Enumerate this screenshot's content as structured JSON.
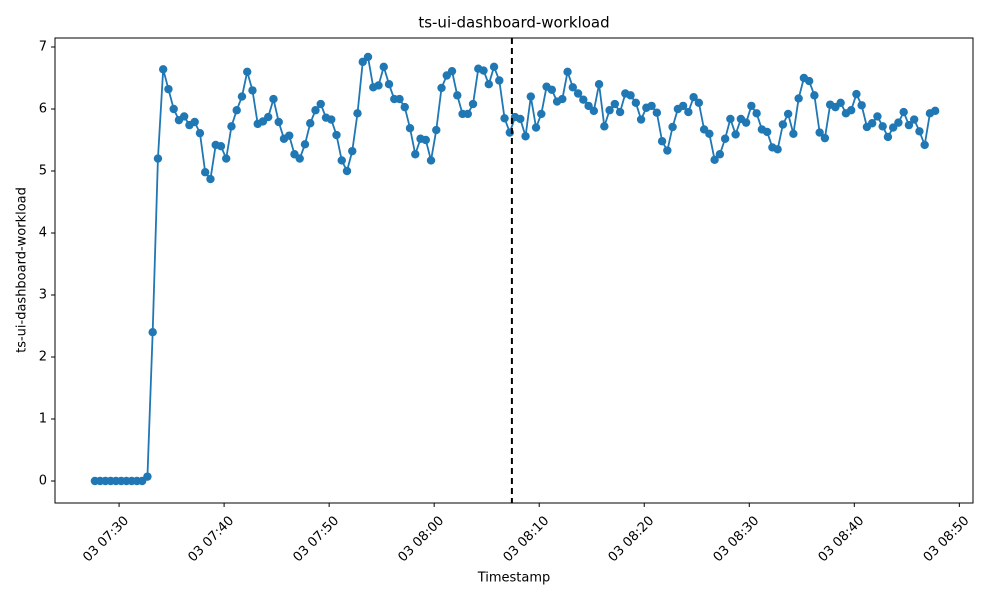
{
  "chart_data": {
    "type": "line",
    "title": "ts-ui-dashboard-workload",
    "xlabel": "Timestamp",
    "ylabel": "ts-ui-dashboard-workload",
    "x": [
      447.7,
      448.2,
      448.7,
      449.2,
      449.7,
      450.2,
      450.7,
      451.2,
      451.7,
      452.2,
      452.7,
      453.2,
      453.7,
      454.2,
      454.7,
      455.2,
      455.7,
      456.2,
      456.7,
      457.2,
      457.7,
      458.2,
      458.7,
      459.2,
      459.7,
      460.2,
      460.7,
      461.2,
      461.7,
      462.2,
      462.7,
      463.2,
      463.7,
      464.2,
      464.7,
      465.2,
      465.7,
      466.2,
      466.7,
      467.2,
      467.7,
      468.2,
      468.7,
      469.2,
      469.7,
      470.2,
      470.7,
      471.2,
      471.7,
      472.2,
      472.7,
      473.2,
      473.7,
      474.2,
      474.7,
      475.2,
      475.7,
      476.2,
      476.7,
      477.2,
      477.7,
      478.2,
      478.7,
      479.2,
      479.7,
      480.2,
      480.7,
      481.2,
      481.7,
      482.2,
      482.7,
      483.2,
      483.7,
      484.2,
      484.7,
      485.2,
      485.7,
      486.2,
      486.7,
      487.2,
      487.7,
      488.2,
      488.7,
      489.2,
      489.7,
      490.2,
      490.7,
      491.2,
      491.7,
      492.2,
      492.7,
      493.2,
      493.7,
      494.2,
      494.7,
      495.2,
      495.7,
      496.2,
      496.7,
      497.2,
      497.7,
      498.2,
      498.7,
      499.2,
      499.7,
      500.2,
      500.7,
      501.2,
      501.7,
      502.2,
      502.7,
      503.2,
      503.7,
      504.2,
      504.7,
      505.2,
      505.7,
      506.2,
      506.7,
      507.2,
      507.7,
      508.2,
      508.7,
      509.2,
      509.7,
      510.2,
      510.7,
      511.2,
      511.7,
      512.2,
      512.7,
      513.2,
      513.7,
      514.2,
      514.7,
      515.2,
      515.7,
      516.2,
      516.7,
      517.2,
      517.7,
      518.2,
      518.7,
      519.2,
      519.7,
      520.2,
      520.7,
      521.2,
      521.7,
      522.2,
      522.7,
      523.2,
      523.7,
      524.2,
      524.7,
      525.2,
      525.7,
      526.2,
      526.7,
      527.2,
      527.7
    ],
    "series": [
      {
        "name": "ts-ui-dashboard-workload",
        "color": "#1f77b4",
        "values": [
          0,
          0,
          0,
          0,
          0,
          0,
          0,
          0,
          0,
          0,
          0.07,
          2.4,
          5.2,
          6.64,
          6.32,
          6.0,
          5.82,
          5.88,
          5.74,
          5.79,
          5.61,
          4.98,
          4.87,
          5.42,
          5.4,
          5.2,
          5.72,
          5.98,
          6.2,
          6.6,
          6.3,
          5.76,
          5.8,
          5.87,
          6.16,
          5.79,
          5.52,
          5.57,
          5.27,
          5.2,
          5.43,
          5.77,
          5.98,
          6.08,
          5.86,
          5.83,
          5.58,
          5.17,
          5.0,
          5.32,
          5.93,
          6.76,
          6.84,
          6.35,
          6.38,
          6.68,
          6.4,
          6.16,
          6.16,
          6.03,
          5.69,
          5.27,
          5.52,
          5.5,
          5.17,
          5.66,
          6.34,
          6.54,
          6.61,
          6.22,
          5.92,
          5.92,
          6.08,
          6.65,
          6.62,
          6.4,
          6.68,
          6.46,
          5.85,
          5.62,
          5.87,
          5.84,
          5.56,
          6.2,
          5.7,
          5.92,
          6.36,
          6.31,
          6.12,
          6.16,
          6.6,
          6.35,
          6.25,
          6.15,
          6.05,
          5.97,
          6.4,
          5.72,
          5.98,
          6.08,
          5.95,
          6.25,
          6.22,
          6.1,
          5.83,
          6.02,
          6.05,
          5.94,
          5.48,
          5.33,
          5.71,
          6.0,
          6.05,
          5.95,
          6.19,
          6.1,
          5.67,
          5.6,
          5.18,
          5.27,
          5.52,
          5.84,
          5.59,
          5.84,
          5.78,
          6.05,
          5.93,
          5.67,
          5.63,
          5.38,
          5.35,
          5.75,
          5.92,
          5.6,
          6.17,
          6.5,
          6.45,
          6.22,
          5.62,
          5.53,
          6.07,
          6.03,
          6.1,
          5.93,
          5.98,
          6.24,
          6.06,
          5.71,
          5.77,
          5.88,
          5.72,
          5.55,
          5.7,
          5.78,
          5.95,
          5.74,
          5.83,
          5.64,
          5.42,
          5.93,
          5.97
        ]
      }
    ],
    "vline_x": 487.4,
    "xlim": [
      443.9,
      531.3
    ],
    "xticks": [
      {
        "value": 450,
        "label": "03 07:30"
      },
      {
        "value": 460,
        "label": "03 07:40"
      },
      {
        "value": 470,
        "label": "03 07:50"
      },
      {
        "value": 480,
        "label": "03 08:00"
      },
      {
        "value": 490,
        "label": "03 08:10"
      },
      {
        "value": 500,
        "label": "03 08:20"
      },
      {
        "value": 510,
        "label": "03 08:30"
      },
      {
        "value": 520,
        "label": "03 08:40"
      },
      {
        "value": 530,
        "label": "03 08:50"
      }
    ],
    "ylim": [
      -0.355,
      7.145
    ],
    "yticks": [
      0,
      1,
      2,
      3,
      4,
      5,
      6,
      7
    ],
    "grid": false
  }
}
